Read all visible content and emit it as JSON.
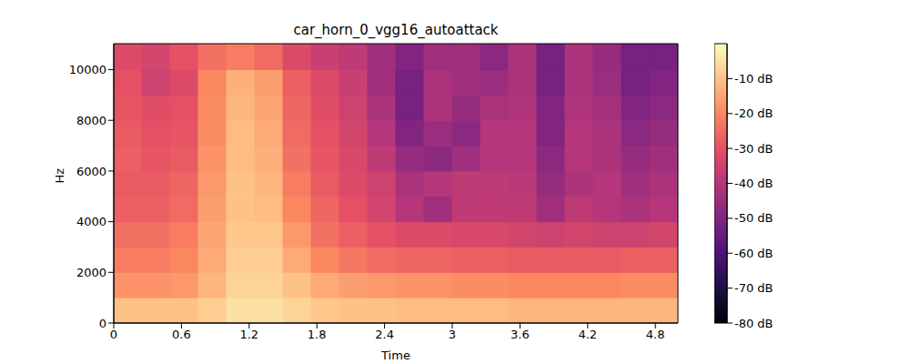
{
  "chart_data": {
    "type": "heatmap",
    "title": "car_horn_0_vgg16_autoattack",
    "x_label": "Time",
    "y_label": "Hz",
    "xlim": [
      0,
      5
    ],
    "xticks": [
      0,
      0.6,
      1.2,
      1.8,
      2.4,
      3,
      3.6,
      4.2,
      4.8
    ],
    "ylim": [
      0,
      11025
    ],
    "yticks": [
      0,
      2000,
      4000,
      6000,
      8000,
      10000
    ],
    "x_edges": [
      0,
      0.25,
      0.5,
      0.75,
      1,
      1.25,
      1.5,
      1.75,
      2,
      2.25,
      2.5,
      2.75,
      3,
      3.25,
      3.5,
      3.75,
      4,
      4.25,
      4.5,
      4.75,
      5
    ],
    "y_edges": [
      0,
      1000,
      2000,
      3000,
      4000,
      5000,
      6000,
      7000,
      8000,
      9000,
      10000,
      11025
    ],
    "cells": [
      [
        -10,
        -10,
        -10,
        -8,
        -5,
        -5,
        -7,
        -9,
        -10,
        -10,
        -11,
        -11,
        -11,
        -11,
        -12,
        -12,
        -12,
        -12,
        -12,
        -12
      ],
      [
        -18,
        -18,
        -17,
        -12,
        -7,
        -7,
        -10,
        -14,
        -16,
        -17,
        -18,
        -18,
        -19,
        -19,
        -20,
        -20,
        -20,
        -20,
        -19,
        -19
      ],
      [
        -22,
        -22,
        -20,
        -14,
        -8,
        -8,
        -14,
        -20,
        -23,
        -25,
        -26,
        -26,
        -27,
        -27,
        -28,
        -28,
        -28,
        -28,
        -27,
        -27
      ],
      [
        -24,
        -24,
        -22,
        -15,
        -9,
        -9,
        -17,
        -24,
        -27,
        -30,
        -32,
        -32,
        -33,
        -33,
        -34,
        -35,
        -34,
        -35,
        -35,
        -34
      ],
      [
        -27,
        -27,
        -25,
        -16,
        -10,
        -11,
        -20,
        -26,
        -30,
        -34,
        -40,
        -44,
        -38,
        -38,
        -38,
        -44,
        -38,
        -40,
        -42,
        -40
      ],
      [
        -28,
        -28,
        -26,
        -17,
        -10,
        -12,
        -22,
        -28,
        -32,
        -35,
        -42,
        -40,
        -38,
        -38,
        -39,
        -46,
        -42,
        -40,
        -44,
        -42
      ],
      [
        -27,
        -29,
        -28,
        -18,
        -11,
        -13,
        -24,
        -29,
        -33,
        -38,
        -46,
        -48,
        -44,
        -40,
        -40,
        -48,
        -40,
        -42,
        -46,
        -44
      ],
      [
        -28,
        -30,
        -29,
        -19,
        -11,
        -14,
        -25,
        -30,
        -34,
        -40,
        -50,
        -45,
        -48,
        -40,
        -40,
        -50,
        -40,
        -42,
        -48,
        -46
      ],
      [
        -29,
        -31,
        -30,
        -19,
        -12,
        -15,
        -26,
        -31,
        -35,
        -42,
        -52,
        -42,
        -46,
        -42,
        -41,
        -50,
        -41,
        -43,
        -50,
        -48
      ],
      [
        -30,
        -35,
        -32,
        -20,
        -13,
        -16,
        -27,
        -32,
        -36,
        -44,
        -52,
        -42,
        -44,
        -45,
        -42,
        -52,
        -42,
        -45,
        -52,
        -50
      ],
      [
        -32,
        -34,
        -30,
        -24,
        -22,
        -25,
        -32,
        -36,
        -38,
        -44,
        -50,
        -44,
        -44,
        -48,
        -42,
        -52,
        -42,
        -46,
        -52,
        -52
      ]
    ],
    "colorbar_range": [
      -80,
      0
    ],
    "colorbar_ticks": [
      {
        "value": -10,
        "label": "-10 dB"
      },
      {
        "value": -20,
        "label": "-20 dB"
      },
      {
        "value": -30,
        "label": "-30 dB"
      },
      {
        "value": -40,
        "label": "-40 dB"
      },
      {
        "value": -50,
        "label": "-50 dB"
      },
      {
        "value": -60,
        "label": "-60 dB"
      },
      {
        "value": -70,
        "label": "-70 dB"
      },
      {
        "value": -80,
        "label": "-80 dB"
      }
    ]
  }
}
